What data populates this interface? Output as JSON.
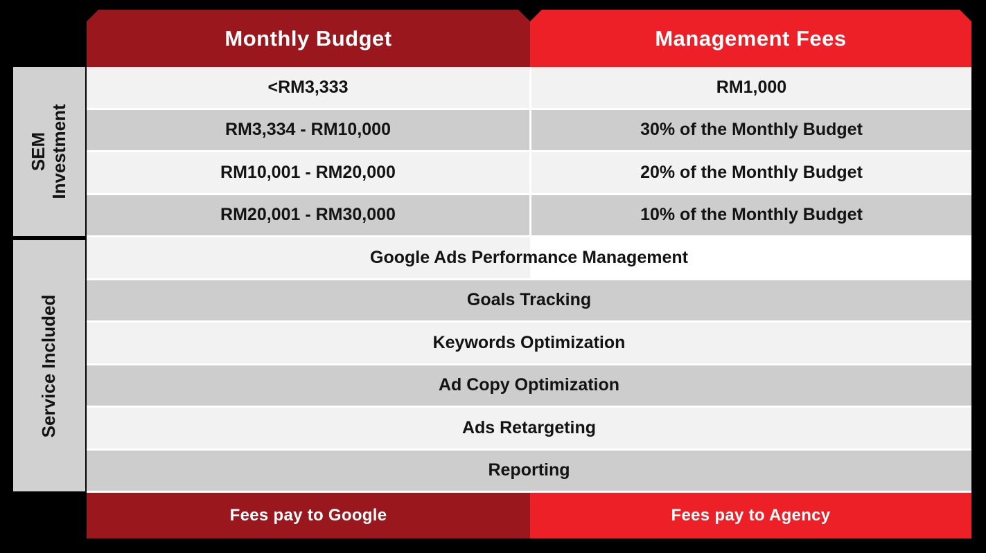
{
  "colors": {
    "dark_red": "#9A171D",
    "bright_red": "#ED2027",
    "row_light": "#F2F2F2",
    "row_gray": "#CDCDCD",
    "row_white": "#FFFFFF",
    "sidebar_gray": "#D1D1D1",
    "text_dark": "#131313",
    "text_light": "#FFFFFF",
    "background": "#000000"
  },
  "chart_data": {
    "type": "table",
    "columns": [
      "Monthly Budget",
      "Management Fees"
    ],
    "row_groups": [
      {
        "group": "SEM\nInvestment",
        "rows": [
          [
            "<RM3,333",
            "RM1,000"
          ],
          [
            "RM3,334 - RM10,000",
            "30% of the Monthly Budget"
          ],
          [
            "RM10,001 - RM20,000",
            "20% of the Monthly Budget"
          ],
          [
            "RM20,001 - RM30,000",
            "10% of the Monthly Budget"
          ]
        ]
      },
      {
        "group": "Service Included",
        "rows": [
          [
            "Google Ads Performance Management"
          ],
          [
            "Goals Tracking"
          ],
          [
            "Keywords Optimization"
          ],
          [
            "Ad Copy Optimization"
          ],
          [
            "Ads Retargeting"
          ],
          [
            "Reporting"
          ]
        ]
      }
    ],
    "footer": [
      "Fees pay to Google",
      "Fees pay to Agency"
    ]
  }
}
